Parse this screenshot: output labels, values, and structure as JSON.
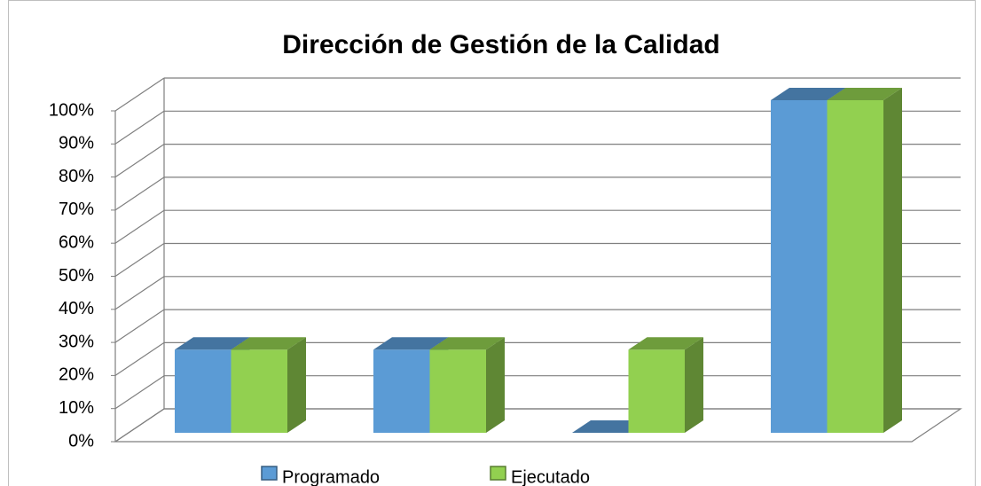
{
  "chart_data": {
    "type": "bar3d",
    "title": "Dirección de Gestión de la Calidad",
    "categories": [
      null,
      null,
      null,
      null
    ],
    "series": [
      {
        "name": "Programado",
        "color": "#5b9bd5",
        "values": [
          25,
          25,
          0,
          100
        ]
      },
      {
        "name": "Ejecutado",
        "color": "#92d050",
        "values": [
          25,
          25,
          25,
          100
        ]
      }
    ],
    "ylim": [
      0,
      100
    ],
    "yticks": [
      {
        "value": 0,
        "label": "0%"
      },
      {
        "value": 10,
        "label": "10%"
      },
      {
        "value": 20,
        "label": "20%"
      },
      {
        "value": 30,
        "label": "30%"
      },
      {
        "value": 40,
        "label": "40%"
      },
      {
        "value": 50,
        "label": "50%"
      },
      {
        "value": 60,
        "label": "60%"
      },
      {
        "value": 70,
        "label": "70%"
      },
      {
        "value": 80,
        "label": "80%"
      },
      {
        "value": 90,
        "label": "90%"
      },
      {
        "value": 100,
        "label": "100%"
      }
    ],
    "grid": true,
    "legend": "bottom"
  }
}
